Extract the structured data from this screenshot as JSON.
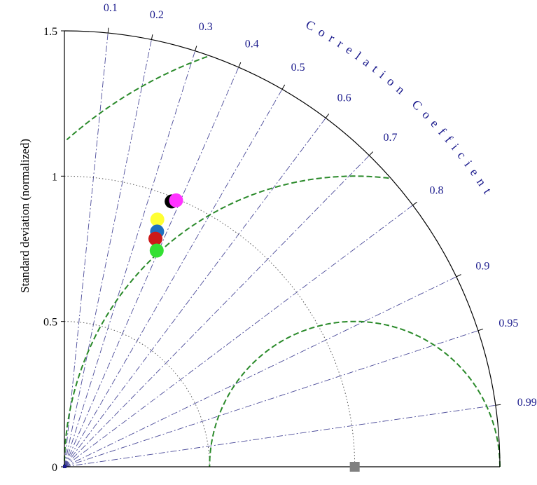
{
  "chart_data": {
    "type": "taylor-diagram",
    "ylabel": "Standard deviation (normalized)",
    "arc_label": "Correlation Coefficient",
    "std_ticks": [
      "0",
      "0.5",
      "1",
      "1.5"
    ],
    "std_tick_values": [
      0,
      0.5,
      1,
      1.5
    ],
    "std_max": 1.5,
    "correlation_ticks": [
      "0.1",
      "0.2",
      "0.3",
      "0.4",
      "0.5",
      "0.6",
      "0.7",
      "0.8",
      "0.9",
      "0.95",
      "0.99"
    ],
    "correlation_tick_values": [
      0.1,
      0.2,
      0.3,
      0.4,
      0.5,
      0.6,
      0.7,
      0.8,
      0.9,
      0.95,
      0.99
    ],
    "std_reference_arcs": [
      0.5,
      1.0
    ],
    "rms_arcs": [
      0.5,
      1.0,
      1.5
    ],
    "reference": {
      "std": 1.0,
      "correlation": 1.0,
      "color": "#808080"
    },
    "points": [
      {
        "correlation": 0.375,
        "std": 0.985,
        "color": "#000000"
      },
      {
        "correlation": 0.387,
        "std": 0.994,
        "color": "#ff33ff"
      },
      {
        "correlation": 0.352,
        "std": 0.909,
        "color": "#ffff33"
      },
      {
        "correlation": 0.367,
        "std": 0.87,
        "color": "#1e6fbf"
      },
      {
        "correlation": 0.371,
        "std": 0.845,
        "color": "#cc1a1a"
      },
      {
        "correlation": 0.393,
        "std": 0.809,
        "color": "#33e033"
      }
    ],
    "colors": {
      "spokes": "#4a4a99",
      "rms_arcs": "#2a8a2a",
      "std_arcs": "#555555",
      "frame": "#000000"
    }
  }
}
